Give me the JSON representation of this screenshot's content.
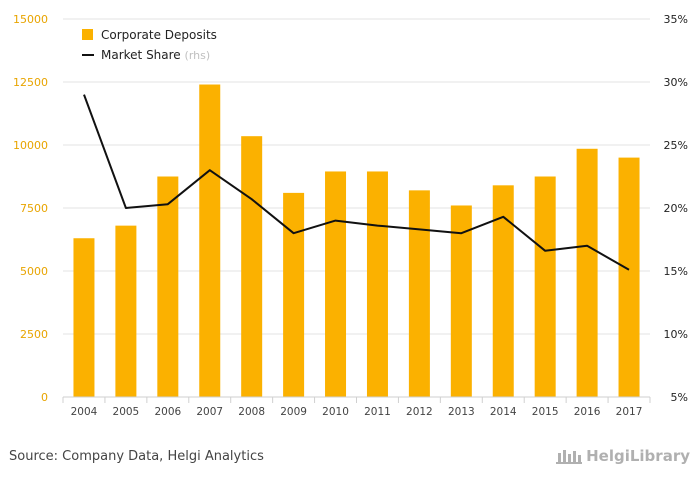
{
  "chart_data": {
    "type": "bar",
    "categories": [
      "2004",
      "2005",
      "2006",
      "2007",
      "2008",
      "2009",
      "2010",
      "2011",
      "2012",
      "2013",
      "2014",
      "2015",
      "2016",
      "2017"
    ],
    "series": [
      {
        "name": "Corporate Deposits",
        "type": "bar",
        "axis": "left",
        "color": "#fbb100",
        "values": [
          6300,
          6800,
          8750,
          12400,
          10350,
          8100,
          8950,
          8950,
          8200,
          7600,
          8400,
          8750,
          9850,
          9500
        ]
      },
      {
        "name": "Market Share",
        "legend_note": "(rhs)",
        "type": "line",
        "axis": "right",
        "color": "#111111",
        "values": [
          29.0,
          20.0,
          20.3,
          23.0,
          20.7,
          18.0,
          19.0,
          18.6,
          18.3,
          18.0,
          19.3,
          16.6,
          17.0,
          15.1
        ]
      }
    ],
    "y_left": {
      "ylim": [
        0,
        15000
      ],
      "ticks": [
        0,
        2500,
        5000,
        7500,
        10000,
        12500,
        15000
      ],
      "tick_labels": [
        "0",
        "2500",
        "5000",
        "7500",
        "10000",
        "12500",
        "15000"
      ]
    },
    "y_right": {
      "ylim": [
        5,
        35
      ],
      "ticks": [
        5,
        10,
        15,
        20,
        25,
        30,
        35
      ],
      "tick_labels": [
        "5%",
        "10%",
        "15%",
        "20%",
        "25%",
        "30%",
        "35%"
      ]
    },
    "grid": true,
    "legend_position": "top-left"
  },
  "source": "Source: Company Data, Helgi Analytics",
  "brand": {
    "name": "HelgiLibrary"
  }
}
